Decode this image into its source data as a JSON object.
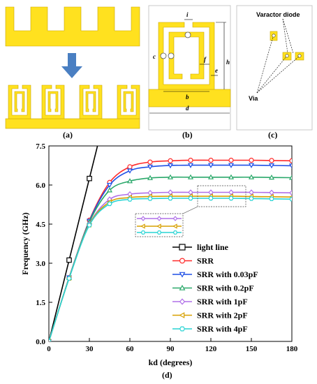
{
  "panels": {
    "a": {
      "label": "(a)"
    },
    "b": {
      "label": "(b)",
      "dims": {
        "i": "i",
        "c": "c",
        "f": "f",
        "e": "e",
        "b": "b",
        "h": "h",
        "d": "d"
      }
    },
    "c": {
      "label": "(c)",
      "varactor_label": "Varactor  diode",
      "via_label": "Via"
    },
    "d": {
      "label": "(d)"
    }
  },
  "colors": {
    "metal": "#ffe11f",
    "metal_edge": "#c9a400"
  },
  "chart_data": {
    "type": "line",
    "xlabel": "kd (degrees)",
    "ylabel": "Frequency (GHz)",
    "xlim": [
      0,
      180
    ],
    "ylim": [
      0,
      7.5
    ],
    "xticks": [
      0,
      30,
      60,
      90,
      120,
      150,
      180
    ],
    "yticks": [
      0.0,
      1.5,
      3.0,
      4.5,
      6.0,
      7.5
    ],
    "ytick_labels": [
      "0.0",
      "1.5",
      "3.0",
      "4.5",
      "6.0",
      "7.5"
    ],
    "legend_position": "bottom-right",
    "light_line": {
      "name": "light line",
      "color": "#000000",
      "marker": "square",
      "x": [
        0,
        15,
        30,
        45
      ],
      "y": [
        0,
        3.12,
        6.25,
        9.37
      ]
    },
    "series": [
      {
        "name": "SRR",
        "color": "#ff2a2a",
        "marker": "circle",
        "x": [
          0,
          15,
          30,
          45,
          60,
          75,
          90,
          105,
          120,
          135,
          150,
          165,
          180
        ],
        "y": [
          0,
          2.45,
          4.65,
          6.1,
          6.7,
          6.88,
          6.93,
          6.95,
          6.95,
          6.95,
          6.95,
          6.94,
          6.93
        ]
      },
      {
        "name": "SRR with 0.03pF",
        "color": "#1f4fe6",
        "marker": "triangle-down",
        "x": [
          0,
          15,
          30,
          45,
          60,
          75,
          90,
          105,
          120,
          135,
          150,
          165,
          180
        ],
        "y": [
          0,
          2.45,
          4.62,
          6.0,
          6.55,
          6.7,
          6.75,
          6.76,
          6.76,
          6.76,
          6.76,
          6.75,
          6.74
        ]
      },
      {
        "name": "SRR with 0.2pF",
        "color": "#2aa86a",
        "marker": "triangle-up",
        "x": [
          0,
          15,
          30,
          45,
          60,
          75,
          90,
          105,
          120,
          135,
          150,
          165,
          180
        ],
        "y": [
          0,
          2.44,
          4.58,
          5.8,
          6.15,
          6.27,
          6.3,
          6.3,
          6.3,
          6.3,
          6.3,
          6.29,
          6.28
        ]
      },
      {
        "name": "SRR with 1pF",
        "color": "#b070e8",
        "marker": "diamond",
        "x": [
          0,
          15,
          30,
          45,
          60,
          75,
          90,
          105,
          120,
          135,
          150,
          165,
          180
        ],
        "y": [
          0,
          2.43,
          4.5,
          5.45,
          5.65,
          5.7,
          5.72,
          5.72,
          5.72,
          5.72,
          5.72,
          5.71,
          5.7
        ]
      },
      {
        "name": "SRR with 2pF",
        "color": "#d7a000",
        "marker": "triangle-left",
        "x": [
          0,
          15,
          30,
          45,
          60,
          75,
          90,
          105,
          120,
          135,
          150,
          165,
          180
        ],
        "y": [
          0,
          2.43,
          4.48,
          5.35,
          5.52,
          5.56,
          5.57,
          5.57,
          5.57,
          5.57,
          5.56,
          5.55,
          5.54
        ]
      },
      {
        "name": "SRR with 4pF",
        "color": "#28d4d4",
        "marker": "hexagon",
        "x": [
          0,
          15,
          30,
          45,
          60,
          75,
          90,
          105,
          120,
          135,
          150,
          165,
          180
        ],
        "y": [
          0,
          2.42,
          4.46,
          5.28,
          5.45,
          5.48,
          5.49,
          5.49,
          5.49,
          5.49,
          5.48,
          5.47,
          5.46
        ]
      }
    ]
  }
}
